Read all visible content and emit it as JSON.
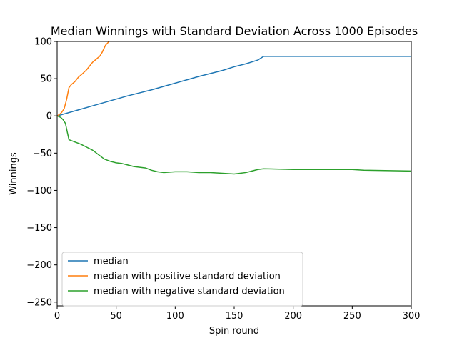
{
  "chart_data": {
    "type": "line",
    "title": "Median Winnings with Standard Deviation Across 1000 Episodes",
    "xlabel": "Spin round",
    "ylabel": "Winnings",
    "xlim": [
      0,
      300
    ],
    "ylim": [
      -255,
      100
    ],
    "xticks": [
      0,
      50,
      100,
      150,
      200,
      250,
      300
    ],
    "yticks": [
      100,
      50,
      0,
      -50,
      -100,
      -150,
      -200,
      -250
    ],
    "grid": false,
    "legend_position": "lower-left",
    "series": [
      {
        "name": "median",
        "color": "#1f77b4",
        "x": [
          0,
          20,
          40,
          60,
          80,
          100,
          120,
          140,
          150,
          160,
          170,
          175,
          200,
          250,
          300
        ],
        "y": [
          0,
          9,
          18,
          27,
          35,
          44,
          53,
          61,
          66,
          70,
          75,
          80,
          80,
          80,
          80
        ]
      },
      {
        "name": "median with positive standard deviation",
        "color": "#ff7f0e",
        "x": [
          0,
          2,
          4,
          6,
          8,
          10,
          12,
          15,
          18,
          21,
          25,
          28,
          30,
          33,
          36,
          38,
          41,
          44
        ],
        "y": [
          0,
          2,
          5,
          10,
          22,
          38,
          42,
          46,
          52,
          56,
          62,
          68,
          72,
          76,
          80,
          85,
          95,
          100
        ]
      },
      {
        "name": "median with negative standard deviation",
        "color": "#2ca02c",
        "x": [
          0,
          3,
          5,
          7,
          10,
          15,
          20,
          25,
          30,
          35,
          40,
          45,
          50,
          55,
          60,
          65,
          70,
          75,
          80,
          85,
          90,
          100,
          110,
          120,
          130,
          140,
          150,
          155,
          160,
          165,
          170,
          175,
          200,
          250,
          260,
          300
        ],
        "y": [
          0,
          -2,
          -5,
          -10,
          -32,
          -35,
          -38,
          -42,
          -46,
          -52,
          -58,
          -61,
          -63,
          -64,
          -66,
          -68,
          -69,
          -70,
          -73,
          -75,
          -76,
          -75,
          -75,
          -76,
          -76,
          -77,
          -78,
          -77,
          -76,
          -74,
          -72,
          -71,
          -72,
          -72,
          -73,
          -74
        ]
      }
    ]
  }
}
